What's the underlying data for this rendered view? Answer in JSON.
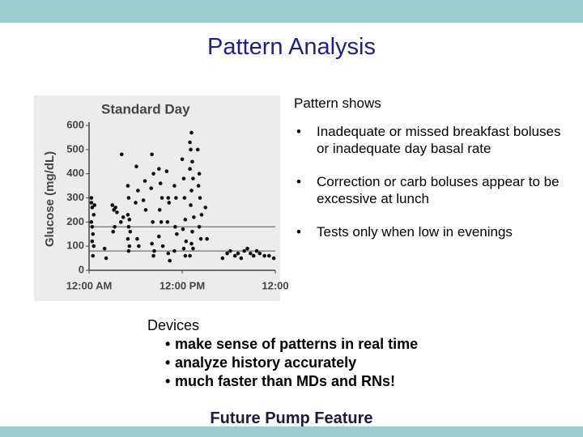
{
  "title": "Pattern Analysis",
  "chart_data": {
    "type": "scatter",
    "title": "Standard Day",
    "y_label": "Glucose (mg/dL)",
    "x": [
      0.3,
      0.3,
      0.4,
      0.3,
      0.4,
      0.5,
      0.4,
      0.6,
      0.5,
      0.7,
      0.6,
      2.0,
      2.2,
      3.0,
      3.2,
      3.4,
      3.6,
      3.3,
      3.1,
      4.2,
      4.4,
      4.1,
      5.0,
      5.1,
      5.0,
      5.2,
      5.1,
      5.3,
      5.0,
      5.2,
      5.1,
      6.1,
      6.3,
      6.0,
      6.2,
      6.4,
      7.2,
      7.0,
      7.3,
      8.1,
      8.3,
      8.0,
      8.2,
      8.1,
      8.4,
      8.3,
      9.0,
      9.2,
      9.4,
      9.1,
      9.3,
      9.0,
      9.5,
      10.0,
      10.2,
      10.3,
      10.1,
      10.2,
      10.4,
      11.0,
      11.2,
      11.1,
      11.3,
      11.0,
      12.0,
      12.2,
      12.3,
      12.4,
      12.1,
      12.5,
      12.2,
      12.4,
      13.0,
      13.2,
      13.1,
      13.3,
      13.0,
      13.4,
      13.2,
      13.1,
      13.5,
      13.3,
      13.2,
      13.4,
      13.0,
      14.0,
      14.2,
      14.1,
      14.3,
      14.5,
      14.2,
      14.4,
      15.0,
      15.2,
      17.2,
      17.8,
      18.2,
      18.8,
      19.2,
      19.6,
      20.0,
      20.4,
      20.8,
      21.2,
      21.6,
      22.0,
      22.6,
      23.2,
      23.8
    ],
    "values": [
      300,
      280,
      260,
      200,
      180,
      150,
      120,
      100,
      60,
      270,
      230,
      90,
      50,
      270,
      250,
      260,
      240,
      180,
      160,
      480,
      220,
      200,
      350,
      300,
      230,
      210,
      180,
      160,
      130,
      100,
      80,
      430,
      330,
      280,
      130,
      100,
      370,
      290,
      250,
      480,
      400,
      340,
      200,
      110,
      80,
      60,
      420,
      360,
      300,
      250,
      200,
      140,
      100,
      410,
      300,
      280,
      200,
      70,
      40,
      350,
      300,
      180,
      150,
      80,
      460,
      380,
      300,
      210,
      170,
      120,
      90,
      60,
      530,
      570,
      500,
      450,
      420,
      380,
      330,
      270,
      220,
      160,
      110,
      90,
      60,
      500,
      400,
      350,
      300,
      230,
      180,
      130,
      260,
      130,
      50,
      70,
      80,
      60,
      70,
      50,
      80,
      90,
      70,
      60,
      80,
      70,
      60,
      60,
      50
    ],
    "color": "#111111",
    "xlim": [
      0,
      24
    ],
    "xticks": [
      {
        "value": 0,
        "label": "12:00 AM"
      },
      {
        "value": 12,
        "label": "12:00 PM"
      },
      {
        "value": 24,
        "label": "12:00"
      }
    ],
    "ylim": [
      0,
      600
    ],
    "yticks": [
      0,
      100,
      200,
      300,
      400,
      500,
      600
    ],
    "reference_lines": [
      180,
      80
    ]
  },
  "pattern": {
    "heading": "Pattern shows",
    "bullets": [
      "Inadequate or missed breakfast boluses or inadequate day basal rate",
      "Correction or carb boluses appear to be excessive at lunch",
      "Tests only when low in evenings"
    ]
  },
  "devices": {
    "heading": "Devices",
    "items": [
      "make sense of patterns in real time",
      "analyze history accurately",
      "much faster than MDs and RNs!"
    ]
  },
  "footer": "Future Pump Feature"
}
